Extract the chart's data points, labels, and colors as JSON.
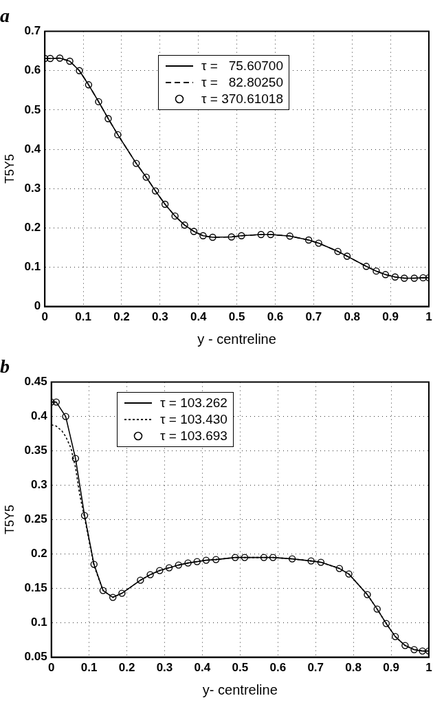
{
  "chart_data": [
    {
      "type": "line",
      "title": "a",
      "xlabel": "y - centreline",
      "ylabel": "T5Y5",
      "xlim": [
        0,
        1
      ],
      "ylim": [
        0,
        0.7
      ],
      "xticks": [
        0,
        0.1,
        0.2,
        0.3,
        0.4,
        0.5,
        0.6,
        0.7,
        0.8,
        0.9,
        1
      ],
      "yticks": [
        0,
        0.1,
        0.2,
        0.3,
        0.4,
        0.5,
        0.6,
        0.7
      ],
      "grid": true,
      "legend": "top",
      "series": [
        {
          "name": "τ =   75.60700",
          "type": "line",
          "line_style": "solid",
          "color": "#000000",
          "x": [
            0,
            0.014,
            0.039,
            0.065,
            0.09,
            0.114,
            0.14,
            0.165,
            0.19,
            0.238,
            0.264,
            0.288,
            0.313,
            0.339,
            0.364,
            0.388,
            0.412,
            0.437,
            0.486,
            0.512,
            0.563,
            0.588,
            0.638,
            0.687,
            0.713,
            0.763,
            0.787,
            0.837,
            0.863,
            0.887,
            0.912,
            0.936,
            0.962,
            0.985,
            1
          ],
          "values": [
            0.631,
            0.631,
            0.632,
            0.624,
            0.6,
            0.564,
            0.521,
            0.478,
            0.437,
            0.364,
            0.329,
            0.294,
            0.26,
            0.23,
            0.207,
            0.191,
            0.18,
            0.176,
            0.177,
            0.18,
            0.183,
            0.183,
            0.179,
            0.169,
            0.161,
            0.14,
            0.128,
            0.102,
            0.09,
            0.081,
            0.075,
            0.072,
            0.072,
            0.073,
            0.073
          ]
        },
        {
          "name": "τ =   82.80250",
          "type": "line",
          "line_style": "dashed",
          "color": "#000000",
          "x": [
            0,
            0.014,
            0.039,
            0.065,
            0.09,
            0.114,
            0.14,
            0.165,
            0.19,
            0.238,
            0.264,
            0.288,
            0.313,
            0.339,
            0.364,
            0.388,
            0.412,
            0.437,
            0.486,
            0.512,
            0.563,
            0.588,
            0.638,
            0.687,
            0.713,
            0.763,
            0.787,
            0.837,
            0.863,
            0.887,
            0.912,
            0.936,
            0.962,
            0.985,
            1
          ],
          "values": [
            0.631,
            0.631,
            0.632,
            0.624,
            0.6,
            0.564,
            0.521,
            0.478,
            0.437,
            0.364,
            0.329,
            0.294,
            0.26,
            0.23,
            0.207,
            0.191,
            0.18,
            0.176,
            0.177,
            0.18,
            0.183,
            0.183,
            0.179,
            0.169,
            0.161,
            0.14,
            0.128,
            0.102,
            0.09,
            0.081,
            0.075,
            0.072,
            0.072,
            0.073,
            0.073
          ]
        },
        {
          "name": "τ = 370.61018",
          "type": "scatter",
          "marker": "circle",
          "color": "#000000",
          "x": [
            0,
            0.014,
            0.039,
            0.065,
            0.09,
            0.114,
            0.14,
            0.165,
            0.19,
            0.238,
            0.264,
            0.288,
            0.313,
            0.339,
            0.364,
            0.388,
            0.412,
            0.437,
            0.486,
            0.512,
            0.563,
            0.588,
            0.638,
            0.687,
            0.713,
            0.763,
            0.787,
            0.837,
            0.863,
            0.887,
            0.912,
            0.936,
            0.962,
            0.985,
            1
          ],
          "values": [
            0.631,
            0.631,
            0.632,
            0.624,
            0.6,
            0.564,
            0.521,
            0.478,
            0.437,
            0.364,
            0.329,
            0.294,
            0.26,
            0.23,
            0.207,
            0.191,
            0.18,
            0.176,
            0.177,
            0.18,
            0.183,
            0.183,
            0.179,
            0.169,
            0.161,
            0.14,
            0.128,
            0.102,
            0.09,
            0.081,
            0.075,
            0.072,
            0.072,
            0.073,
            0.073
          ]
        }
      ]
    },
    {
      "type": "line",
      "title": "b",
      "xlabel": "y- centreline",
      "ylabel": "T5Y5",
      "xlim": [
        0,
        1
      ],
      "ylim": [
        0.05,
        0.45
      ],
      "xticks": [
        0,
        0.1,
        0.2,
        0.3,
        0.4,
        0.5,
        0.6,
        0.7,
        0.8,
        0.9,
        1
      ],
      "yticks": [
        0.05,
        0.1,
        0.15,
        0.2,
        0.25,
        0.3,
        0.35,
        0.4,
        0.45
      ],
      "grid": true,
      "legend": "top left",
      "series": [
        {
          "name": "τ = 103.262",
          "type": "line",
          "line_style": "solid",
          "color": "#000000",
          "x": [
            0,
            0.013,
            0.038,
            0.064,
            0.088,
            0.113,
            0.137,
            0.163,
            0.187,
            0.236,
            0.262,
            0.287,
            0.312,
            0.337,
            0.362,
            0.386,
            0.41,
            0.436,
            0.487,
            0.512,
            0.563,
            0.587,
            0.638,
            0.688,
            0.714,
            0.763,
            0.788,
            0.837,
            0.863,
            0.887,
            0.911,
            0.937,
            0.961,
            0.983,
            1
          ],
          "values": [
            0.421,
            0.421,
            0.4,
            0.339,
            0.256,
            0.185,
            0.147,
            0.137,
            0.143,
            0.162,
            0.17,
            0.176,
            0.18,
            0.184,
            0.187,
            0.189,
            0.191,
            0.192,
            0.195,
            0.195,
            0.195,
            0.195,
            0.193,
            0.19,
            0.188,
            0.179,
            0.171,
            0.141,
            0.12,
            0.099,
            0.08,
            0.067,
            0.061,
            0.059,
            0.059
          ]
        },
        {
          "name": "τ = 103.430",
          "type": "line",
          "line_style": "dotted",
          "color": "#000000",
          "x": [
            0,
            0.013,
            0.028,
            0.038,
            0.052,
            0.064,
            0.076,
            0.088,
            0.113,
            0.137,
            0.163,
            0.187,
            0.236,
            0.262,
            0.287,
            0.312,
            0.337,
            0.362,
            0.386,
            0.41,
            0.436,
            0.487,
            0.512,
            0.563,
            0.587,
            0.638,
            0.688,
            0.714,
            0.763,
            0.788,
            0.837,
            0.863,
            0.887,
            0.911,
            0.937,
            0.961,
            0.983,
            1
          ],
          "values": [
            0.388,
            0.386,
            0.379,
            0.371,
            0.354,
            0.326,
            0.284,
            0.253,
            0.183,
            0.147,
            0.137,
            0.143,
            0.162,
            0.17,
            0.176,
            0.18,
            0.184,
            0.187,
            0.189,
            0.191,
            0.192,
            0.195,
            0.195,
            0.195,
            0.195,
            0.193,
            0.19,
            0.188,
            0.179,
            0.171,
            0.141,
            0.12,
            0.099,
            0.08,
            0.067,
            0.061,
            0.059,
            0.059
          ]
        },
        {
          "name": "τ = 103.693",
          "type": "scatter",
          "marker": "circle",
          "color": "#000000",
          "x": [
            0,
            0.013,
            0.038,
            0.064,
            0.088,
            0.113,
            0.137,
            0.163,
            0.187,
            0.236,
            0.262,
            0.287,
            0.312,
            0.337,
            0.362,
            0.386,
            0.41,
            0.436,
            0.487,
            0.512,
            0.563,
            0.587,
            0.638,
            0.688,
            0.714,
            0.763,
            0.788,
            0.837,
            0.863,
            0.887,
            0.911,
            0.937,
            0.961,
            0.983,
            1
          ],
          "values": [
            0.421,
            0.421,
            0.4,
            0.339,
            0.256,
            0.185,
            0.147,
            0.137,
            0.143,
            0.162,
            0.17,
            0.176,
            0.18,
            0.184,
            0.187,
            0.189,
            0.191,
            0.192,
            0.195,
            0.195,
            0.195,
            0.195,
            0.193,
            0.19,
            0.188,
            0.179,
            0.171,
            0.141,
            0.12,
            0.099,
            0.08,
            0.067,
            0.061,
            0.059,
            0.059
          ]
        }
      ]
    }
  ]
}
